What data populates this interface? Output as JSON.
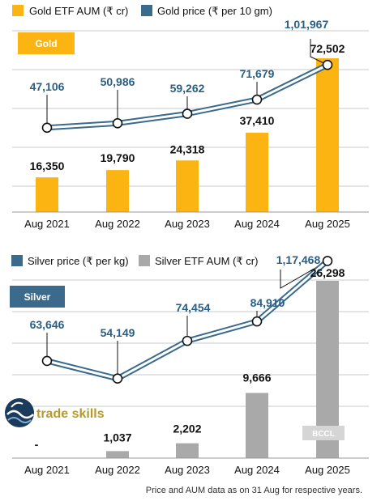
{
  "chart_data": [
    {
      "type": "bar+line",
      "badge": "Gold",
      "categories": [
        "Aug 2021",
        "Aug 2022",
        "Aug 2023",
        "Aug 2024",
        "Aug 2025"
      ],
      "series": [
        {
          "name": "Gold ETF AUM (₹ cr)",
          "kind": "bar",
          "values": [
            16350,
            19790,
            24318,
            37410,
            72502
          ],
          "labels": [
            "16,350",
            "19,790",
            "24,318",
            "37,410",
            "72,502"
          ]
        },
        {
          "name": "Gold price (₹ per 10 gm)",
          "kind": "line",
          "values": [
            47106,
            50986,
            59262,
            71679,
            101967
          ],
          "labels": [
            "47,106",
            "50,986",
            "59,262",
            "71,679",
            "1,01,967"
          ]
        }
      ],
      "grid": true,
      "legend": "top"
    },
    {
      "type": "bar+line",
      "badge": "Silver",
      "categories": [
        "Aug 2021",
        "Aug 2022",
        "Aug 2023",
        "Aug 2024",
        "Aug 2025"
      ],
      "series": [
        {
          "name": "Silver price (₹ per kg)",
          "kind": "line",
          "values": [
            63646,
            54149,
            74454,
            84910,
            117468
          ],
          "labels": [
            "63,646",
            "54,149",
            "74,454",
            "84,910",
            "1,17,468"
          ]
        },
        {
          "name": "Silver ETF AUM (₹ cr)",
          "kind": "bar",
          "values": [
            null,
            1037,
            2202,
            9666,
            26298
          ],
          "labels": [
            "-",
            "1,037",
            "2,202",
            "9,666",
            "26,298"
          ]
        }
      ],
      "grid": true,
      "legend": "top"
    }
  ],
  "colors": {
    "gold_bar": "#fcb412",
    "gold_line": "#3a6a8c",
    "silver_bar": "#a9a9a9",
    "silver_line": "#3a6a8c",
    "value_label_line": "#2a5f85",
    "text": "#111111",
    "grid": "#c9c9c9",
    "silver_badge": "#3b6a8c",
    "bccl_badge": "#d5d5d5"
  },
  "logo_text": "trade skills",
  "watermark": "BCCL",
  "footnote": "Price and AUM data as on 31 Aug for respective years."
}
